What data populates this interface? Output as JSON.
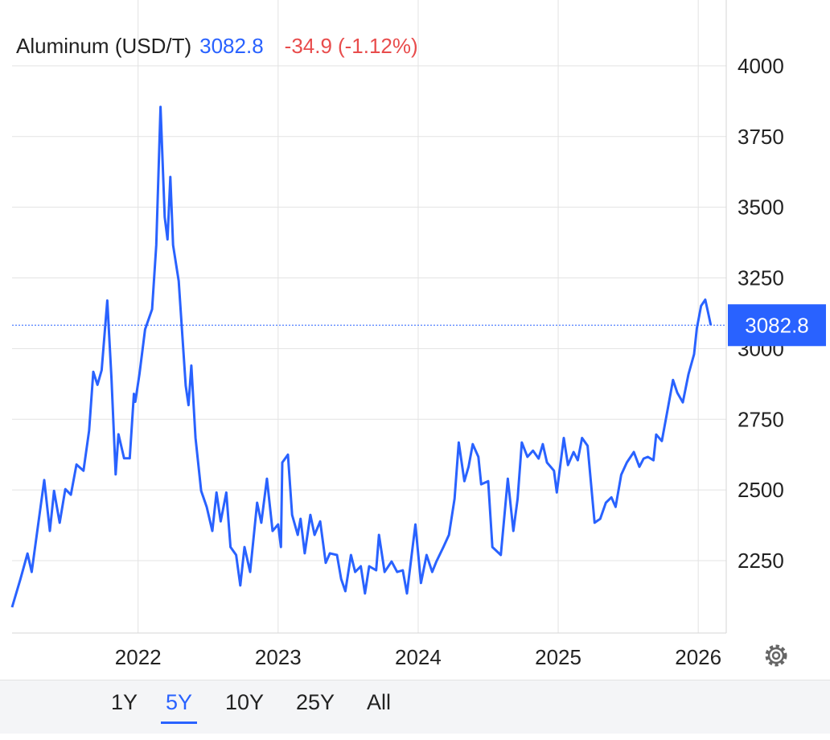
{
  "chart_data": {
    "type": "line",
    "price": 3082.8,
    "change": "-34.9",
    "change_pct": "(-1.12%)",
    "x": [
      2021.1,
      2021.16,
      2021.21,
      2021.24,
      2021.33,
      2021.37,
      2021.4,
      2021.44,
      2021.48,
      2021.52,
      2021.56,
      2021.61,
      2021.65,
      2021.68,
      2021.71,
      2021.74,
      2021.78,
      2021.81,
      2021.84,
      2021.86,
      2021.9,
      2021.94,
      2021.97,
      2021.98,
      2022.01,
      2022.05,
      2022.1,
      2022.13,
      2022.16,
      2022.19,
      2022.21,
      2022.23,
      2022.25,
      2022.29,
      2022.34,
      2022.36,
      2022.38,
      2022.41,
      2022.45,
      2022.49,
      2022.53,
      2022.56,
      2022.59,
      2022.63,
      2022.66,
      2022.7,
      2022.73,
      2022.76,
      2022.8,
      2022.85,
      2022.88,
      2022.92,
      2022.96,
      2023.0,
      2023.02,
      2023.03,
      2023.07,
      2023.1,
      2023.14,
      2023.16,
      2023.19,
      2023.23,
      2023.26,
      2023.3,
      2023.34,
      2023.37,
      2023.42,
      2023.45,
      2023.48,
      2023.52,
      2023.55,
      2023.59,
      2023.62,
      2023.65,
      2023.7,
      2023.72,
      2023.76,
      2023.81,
      2023.85,
      2023.89,
      2023.92,
      2023.98,
      2024.02,
      2024.06,
      2024.1,
      2024.13,
      2024.18,
      2024.22,
      2024.26,
      2024.29,
      2024.33,
      2024.36,
      2024.39,
      2024.43,
      2024.45,
      2024.5,
      2024.53,
      2024.59,
      2024.64,
      2024.68,
      2024.71,
      2024.74,
      2024.78,
      2024.82,
      2024.86,
      2024.89,
      2024.92,
      2024.97,
      2024.99,
      2025.04,
      2025.07,
      2025.11,
      2025.14,
      2025.17,
      2025.21,
      2025.26,
      2025.3,
      2025.34,
      2025.38,
      2025.41,
      2025.45,
      2025.49,
      2025.54,
      2025.58,
      2025.61,
      2025.64,
      2025.68,
      2025.7,
      2025.74,
      2025.78,
      2025.82,
      2025.85,
      2025.89,
      2025.93,
      2025.97,
      2025.99,
      2026.02,
      2026.05,
      2026.07,
      2026.09
    ],
    "series": [
      {
        "name": "Aluminum (USD/T)",
        "color": "#2962ff",
        "values": [
          2085,
          2185,
          2275,
          2210,
          2535,
          2355,
          2497,
          2384,
          2503,
          2483,
          2590,
          2568,
          2710,
          2918,
          2872,
          2924,
          3170,
          2895,
          2555,
          2697,
          2612,
          2612,
          2840,
          2812,
          2910,
          3068,
          3139,
          3366,
          3855,
          3465,
          3386,
          3607,
          3366,
          3239,
          2869,
          2800,
          2940,
          2684,
          2497,
          2440,
          2355,
          2491,
          2389,
          2491,
          2298,
          2270,
          2162,
          2298,
          2210,
          2455,
          2384,
          2540,
          2355,
          2378,
          2298,
          2597,
          2625,
          2412,
          2341,
          2398,
          2276,
          2412,
          2341,
          2389,
          2242,
          2276,
          2270,
          2185,
          2142,
          2270,
          2210,
          2230,
          2134,
          2230,
          2216,
          2341,
          2210,
          2247,
          2210,
          2216,
          2134,
          2378,
          2171,
          2270,
          2210,
          2247,
          2298,
          2341,
          2469,
          2668,
          2531,
          2582,
          2662,
          2617,
          2520,
          2531,
          2298,
          2270,
          2540,
          2355,
          2469,
          2668,
          2617,
          2639,
          2611,
          2662,
          2597,
          2568,
          2491,
          2684,
          2588,
          2634,
          2605,
          2684,
          2656,
          2384,
          2398,
          2455,
          2474,
          2440,
          2554,
          2597,
          2634,
          2582,
          2611,
          2617,
          2605,
          2696,
          2673,
          2781,
          2889,
          2844,
          2810,
          2909,
          2980,
          3071,
          3151,
          3173,
          3128,
          3082.8
        ]
      }
    ],
    "xlim": [
      2021.1,
      2026.2
    ],
    "xticks": [
      2022,
      2023,
      2024,
      2025,
      2026
    ],
    "ylim": [
      1994,
      4233
    ],
    "yticks": [
      2250,
      2500,
      2750,
      3000,
      3250,
      3500,
      3750,
      4000
    ],
    "grid": true,
    "ranges": [
      "1Y",
      "5Y",
      "10Y",
      "25Y",
      "All"
    ],
    "active_range": 1
  }
}
